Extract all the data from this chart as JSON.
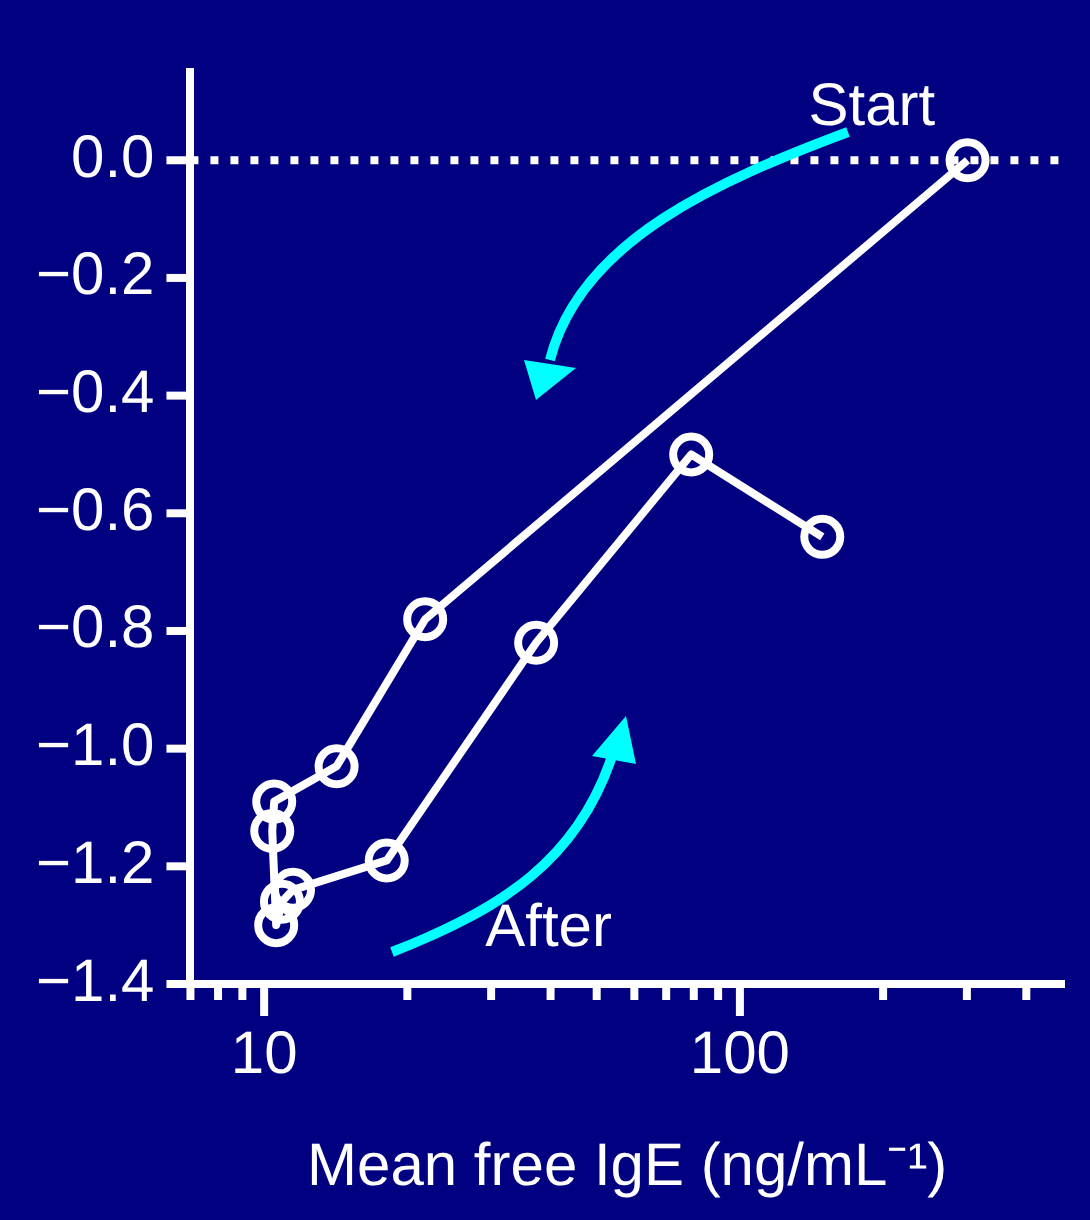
{
  "chart_data": {
    "type": "line",
    "xlabel": "Mean free IgE (ng/mL⁻¹)",
    "log": "x",
    "x": [
      301,
      21.8,
      14.2,
      10.5,
      10.4,
      10.6,
      10.9,
      11.5,
      18.1,
      37.3,
      79,
      149
    ],
    "series": [
      {
        "color": "#ffffff",
        "values": [
          0,
          -0.78,
          -1.03,
          -1.09,
          -1.14,
          -1.3,
          -1.26,
          -1.24,
          -1.19,
          -0.82,
          -0.5,
          -0.64
        ]
      }
    ],
    "xlim": [
      7,
      480
    ],
    "xticks": [
      {
        "value": 7,
        "label": null
      },
      {
        "value": 8,
        "label": null
      },
      {
        "value": 9,
        "label": null
      },
      10,
      {
        "value": 20,
        "label": null
      },
      {
        "value": 30,
        "label": null
      },
      {
        "value": 40,
        "label": null
      },
      {
        "value": 50,
        "label": null
      },
      {
        "value": 60,
        "label": null
      },
      {
        "value": 70,
        "label": null
      },
      {
        "value": 80,
        "label": null
      },
      {
        "value": 90,
        "label": null
      },
      100,
      {
        "value": 200,
        "label": null
      },
      {
        "value": 300,
        "label": null
      },
      {
        "value": 400,
        "label": null
      }
    ],
    "ylim": [
      -1.4,
      0.15
    ],
    "yticks": [
      {
        "value": 0,
        "label": "0.0"
      },
      {
        "value": -0.2,
        "label": "−0.2"
      },
      {
        "value": -0.4,
        "label": "−0.4"
      },
      {
        "value": -0.6,
        "label": "−0.6"
      },
      {
        "value": -0.8,
        "label": "−0.8"
      },
      {
        "value": -1.0,
        "label": "−1.0"
      },
      {
        "value": -1.2,
        "label": "−1.2"
      },
      {
        "value": -1.4,
        "label": "−1.4"
      }
    ],
    "ref_lines": [
      {
        "axis": "y",
        "value": 0,
        "color": "#ffffff",
        "line_style": "dotted"
      }
    ],
    "annotations": [
      "Start",
      "After"
    ],
    "marker": "circle",
    "line_style": "solid",
    "grid": false,
    "legend": false
  }
}
